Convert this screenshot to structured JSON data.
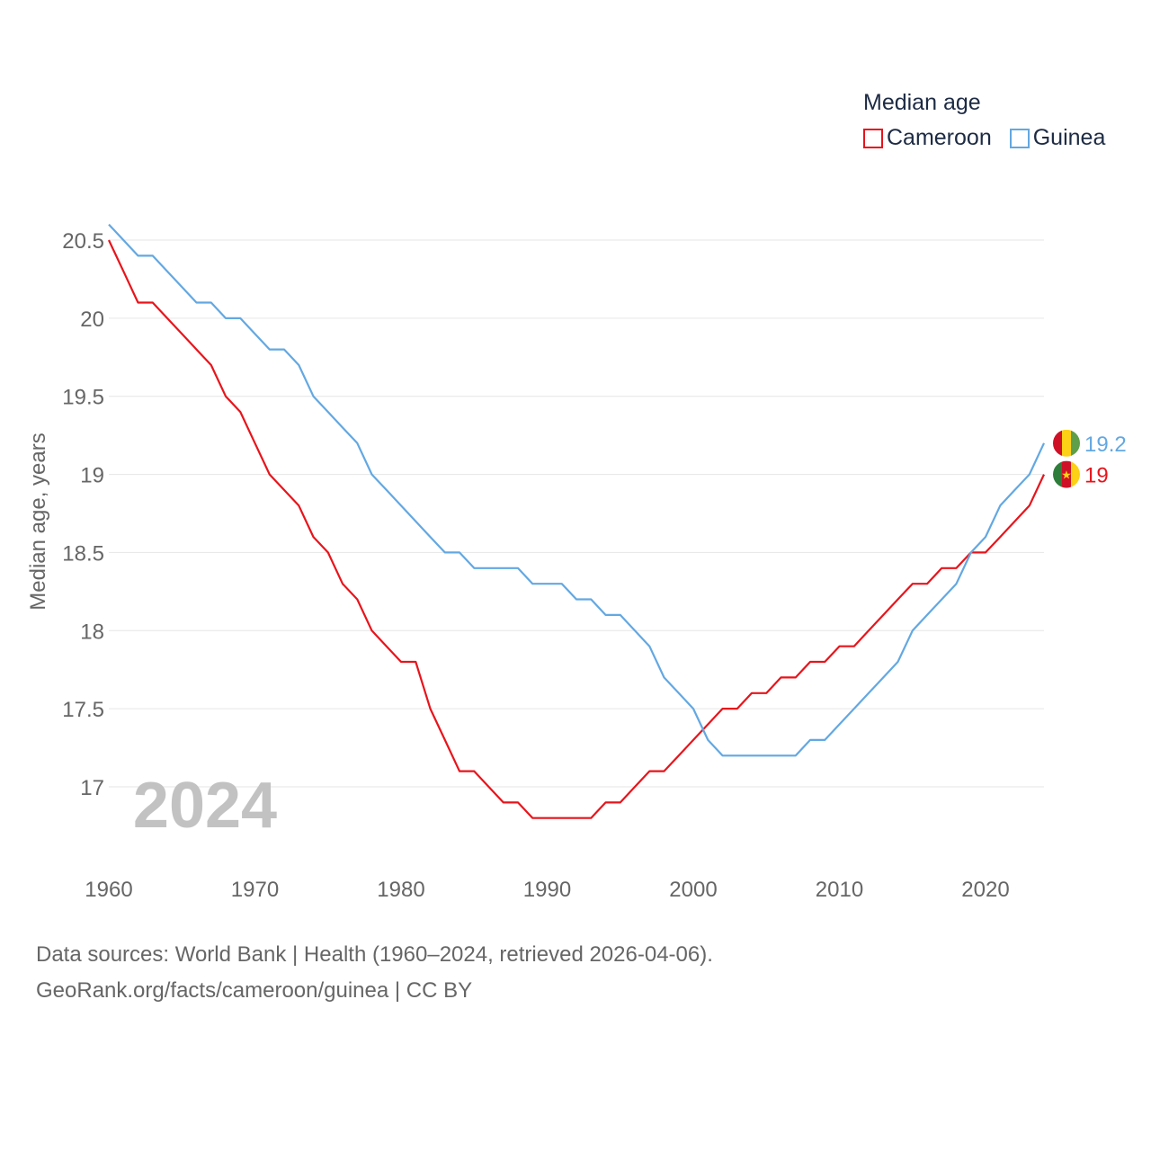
{
  "legend": {
    "title": "Median age",
    "items": [
      {
        "label": "Cameroon",
        "color": "#e8141b"
      },
      {
        "label": "Guinea",
        "color": "#63a8e2"
      }
    ]
  },
  "footer": {
    "line1": "Data sources: World Bank | Health (1960–2024, retrieved 2026-04-06).",
    "line2": "GeoRank.org/facts/cameroon/guinea | CC BY"
  },
  "chart_data": {
    "type": "line",
    "title": "Median age",
    "ylabel": "Median age, years",
    "xlabel": "",
    "year_label": "2024",
    "xlim": [
      1960,
      2024
    ],
    "ylim": [
      16.5,
      20.6
    ],
    "yticks": [
      17,
      17.5,
      18,
      18.5,
      19,
      19.5,
      20,
      20.5
    ],
    "ytick_labels": [
      "17",
      "17.5",
      "18",
      "18.5",
      "19",
      "19.5",
      "20",
      "20.5"
    ],
    "xticks": [
      1960,
      1970,
      1980,
      1990,
      2000,
      2010,
      2020
    ],
    "xtick_labels": [
      "1960",
      "1970",
      "1980",
      "1990",
      "2000",
      "2010",
      "2020"
    ],
    "x": [
      1960,
      1961,
      1962,
      1963,
      1964,
      1965,
      1966,
      1967,
      1968,
      1969,
      1970,
      1971,
      1972,
      1973,
      1974,
      1975,
      1976,
      1977,
      1978,
      1979,
      1980,
      1981,
      1982,
      1983,
      1984,
      1985,
      1986,
      1987,
      1988,
      1989,
      1990,
      1991,
      1992,
      1993,
      1994,
      1995,
      1996,
      1997,
      1998,
      1999,
      2000,
      2001,
      2002,
      2003,
      2004,
      2005,
      2006,
      2007,
      2008,
      2009,
      2010,
      2011,
      2012,
      2013,
      2014,
      2015,
      2016,
      2017,
      2018,
      2019,
      2020,
      2021,
      2022,
      2023,
      2024
    ],
    "series": [
      {
        "name": "Cameroon",
        "color": "#e8141b",
        "end_label": "19",
        "values": [
          20.5,
          20.3,
          20.1,
          20.1,
          20.0,
          19.9,
          19.8,
          19.7,
          19.5,
          19.4,
          19.2,
          19.0,
          18.9,
          18.8,
          18.6,
          18.5,
          18.3,
          18.2,
          18.0,
          17.9,
          17.8,
          17.8,
          17.5,
          17.3,
          17.1,
          17.1,
          17.0,
          16.9,
          16.9,
          16.8,
          16.8,
          16.8,
          16.8,
          16.8,
          16.9,
          16.9,
          17.0,
          17.1,
          17.1,
          17.2,
          17.3,
          17.4,
          17.5,
          17.5,
          17.6,
          17.6,
          17.7,
          17.7,
          17.8,
          17.8,
          17.9,
          17.9,
          18.0,
          18.1,
          18.2,
          18.3,
          18.3,
          18.4,
          18.4,
          18.5,
          18.5,
          18.6,
          18.7,
          18.8,
          19.0
        ]
      },
      {
        "name": "Guinea",
        "color": "#63a8e2",
        "end_label": "19.2",
        "values": [
          20.6,
          20.5,
          20.4,
          20.4,
          20.3,
          20.2,
          20.1,
          20.1,
          20.0,
          20.0,
          19.9,
          19.8,
          19.8,
          19.7,
          19.5,
          19.4,
          19.3,
          19.2,
          19.0,
          18.9,
          18.8,
          18.7,
          18.6,
          18.5,
          18.5,
          18.4,
          18.4,
          18.4,
          18.4,
          18.3,
          18.3,
          18.3,
          18.2,
          18.2,
          18.1,
          18.1,
          18.0,
          17.9,
          17.7,
          17.6,
          17.5,
          17.3,
          17.2,
          17.2,
          17.2,
          17.2,
          17.2,
          17.2,
          17.3,
          17.3,
          17.4,
          17.5,
          17.6,
          17.7,
          17.8,
          18.0,
          18.1,
          18.2,
          18.3,
          18.5,
          18.6,
          18.8,
          18.9,
          19.0,
          19.2
        ]
      }
    ]
  }
}
